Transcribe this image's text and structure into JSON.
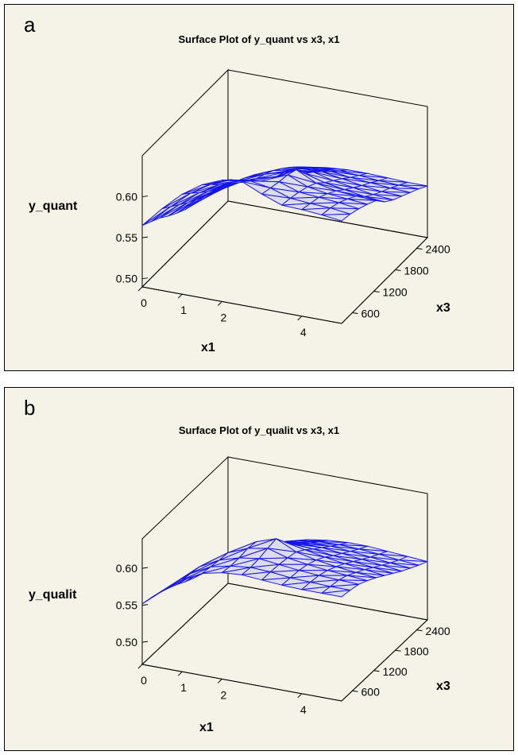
{
  "chart_data": [
    {
      "panel_label": "a",
      "type": "surface",
      "title": "Surface Plot of y_quant vs x3, x1",
      "xlabel": "x1",
      "ylabel": "x3",
      "zlabel": "y_quant",
      "x_ticks": [
        "0",
        "1",
        "2",
        "4"
      ],
      "y_ticks": [
        "600",
        "1200",
        "1800",
        "2400"
      ],
      "z_ticks": [
        "0.50",
        "0.55",
        "0.60"
      ],
      "xlim": [
        0,
        5
      ],
      "ylim": [
        300,
        2700
      ],
      "zlim": [
        0.49,
        0.65
      ],
      "colors": {
        "mesh": "#1515ee",
        "face": "#dcdcec",
        "background": "#f5f3e7"
      },
      "x": [
        0,
        0.5,
        1,
        1.5,
        2,
        2.5,
        3,
        3.5,
        4,
        4.5,
        5
      ],
      "y": [
        300,
        540,
        780,
        1020,
        1260,
        1500,
        1740,
        1980,
        2220,
        2460,
        2700
      ],
      "z": [
        [
          0.565,
          0.59,
          0.612,
          0.628,
          0.638,
          0.641,
          0.63,
          0.621,
          0.62,
          0.618,
          0.615
        ],
        [
          0.559,
          0.582,
          0.603,
          0.618,
          0.628,
          0.631,
          0.627,
          0.619,
          0.617,
          0.616,
          0.613
        ],
        [
          0.553,
          0.574,
          0.593,
          0.607,
          0.616,
          0.62,
          0.624,
          0.616,
          0.614,
          0.612,
          0.609
        ],
        [
          0.545,
          0.566,
          0.584,
          0.598,
          0.605,
          0.61,
          0.622,
          0.612,
          0.608,
          0.606,
          0.604
        ],
        [
          0.538,
          0.559,
          0.576,
          0.59,
          0.598,
          0.605,
          0.618,
          0.606,
          0.601,
          0.599,
          0.598
        ],
        [
          0.532,
          0.553,
          0.57,
          0.584,
          0.593,
          0.6,
          0.603,
          0.596,
          0.592,
          0.588,
          0.586
        ],
        [
          0.528,
          0.547,
          0.563,
          0.577,
          0.587,
          0.592,
          0.594,
          0.588,
          0.584,
          0.58,
          0.578
        ],
        [
          0.524,
          0.541,
          0.556,
          0.569,
          0.579,
          0.583,
          0.584,
          0.58,
          0.576,
          0.573,
          0.572
        ],
        [
          0.52,
          0.535,
          0.549,
          0.561,
          0.57,
          0.573,
          0.574,
          0.571,
          0.569,
          0.567,
          0.566
        ],
        [
          0.514,
          0.528,
          0.541,
          0.552,
          0.56,
          0.563,
          0.564,
          0.563,
          0.561,
          0.56,
          0.56
        ],
        [
          0.51,
          0.521,
          0.532,
          0.542,
          0.549,
          0.553,
          0.555,
          0.555,
          0.554,
          0.553,
          0.553
        ]
      ]
    },
    {
      "panel_label": "b",
      "type": "surface",
      "title": "Surface Plot of y_qualit vs x3, x1",
      "xlabel": "x1",
      "ylabel": "x3",
      "zlabel": "y_qualit",
      "x_ticks": [
        "0",
        "1",
        "2",
        "4"
      ],
      "y_ticks": [
        "600",
        "1200",
        "1800",
        "2400"
      ],
      "z_ticks": [
        "0.50",
        "0.55",
        "0.60"
      ],
      "xlim": [
        0,
        5
      ],
      "ylim": [
        300,
        2700
      ],
      "zlim": [
        0.47,
        0.64
      ],
      "colors": {
        "mesh": "#1515ee",
        "face": "#dcdcec",
        "background": "#f5f3e7"
      },
      "x": [
        0,
        0.5,
        1,
        1.5,
        2,
        2.5,
        3,
        3.5,
        4,
        4.5,
        5
      ],
      "y": [
        300,
        540,
        780,
        1020,
        1260,
        1500,
        1740,
        1980,
        2220,
        2460,
        2700
      ],
      "z": [
        [
          0.552,
          0.574,
          0.594,
          0.608,
          0.614,
          0.616,
          0.614,
          0.612,
          0.611,
          0.611,
          0.611
        ],
        [
          0.549,
          0.571,
          0.592,
          0.606,
          0.612,
          0.615,
          0.614,
          0.611,
          0.61,
          0.609,
          0.609
        ],
        [
          0.545,
          0.567,
          0.59,
          0.604,
          0.612,
          0.616,
          0.613,
          0.61,
          0.608,
          0.607,
          0.606
        ],
        [
          0.54,
          0.562,
          0.585,
          0.603,
          0.614,
          0.619,
          0.611,
          0.607,
          0.604,
          0.602,
          0.6
        ],
        [
          0.534,
          0.556,
          0.578,
          0.596,
          0.612,
          0.621,
          0.608,
          0.602,
          0.598,
          0.595,
          0.593
        ],
        [
          0.527,
          0.55,
          0.57,
          0.587,
          0.6,
          0.605,
          0.6,
          0.595,
          0.591,
          0.588,
          0.585
        ],
        [
          0.521,
          0.544,
          0.562,
          0.577,
          0.588,
          0.592,
          0.59,
          0.586,
          0.583,
          0.58,
          0.577
        ],
        [
          0.516,
          0.539,
          0.555,
          0.568,
          0.577,
          0.581,
          0.581,
          0.578,
          0.575,
          0.572,
          0.569
        ],
        [
          0.511,
          0.533,
          0.548,
          0.559,
          0.567,
          0.571,
          0.572,
          0.57,
          0.567,
          0.564,
          0.562
        ],
        [
          0.506,
          0.527,
          0.541,
          0.551,
          0.558,
          0.562,
          0.563,
          0.562,
          0.56,
          0.557,
          0.555
        ],
        [
          0.5,
          0.52,
          0.533,
          0.542,
          0.549,
          0.553,
          0.555,
          0.555,
          0.553,
          0.551,
          0.549
        ]
      ]
    }
  ]
}
